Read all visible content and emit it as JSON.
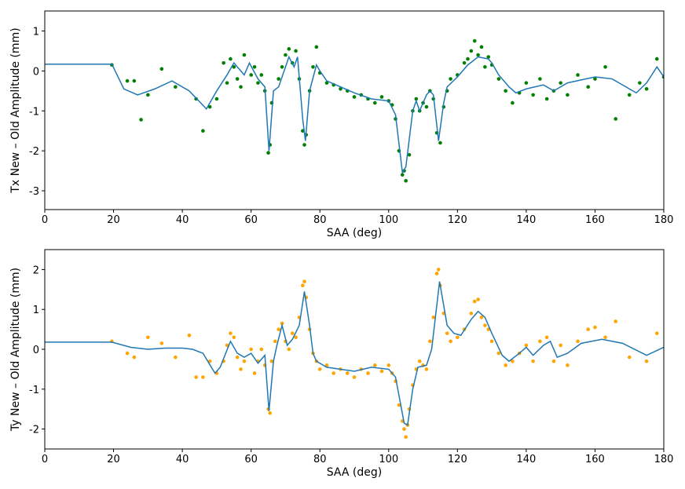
{
  "chart_data": [
    {
      "type": "scatter",
      "xlabel": "SAA (deg)",
      "ylabel": "Tx New – Old Amplitude (mm)",
      "xlim": [
        0,
        180
      ],
      "xticks": [
        0,
        20,
        40,
        60,
        80,
        100,
        120,
        140,
        160,
        180
      ],
      "ylim": [
        -3.47,
        1.5
      ],
      "yticks": [
        -3,
        -2,
        -1,
        0,
        1
      ],
      "series": [
        {
          "type": "scatter",
          "color": "#008000",
          "x": [
            19.5,
            24,
            26,
            28,
            30,
            34,
            38,
            44,
            46,
            48,
            50,
            52,
            53,
            54,
            55,
            56,
            57,
            58,
            60,
            61,
            62,
            63,
            64,
            65,
            65.5,
            66,
            68,
            69,
            70,
            71,
            72,
            73,
            74,
            75,
            75.5,
            76,
            77,
            78,
            79,
            80,
            82,
            84,
            86,
            88,
            90,
            92,
            94,
            96,
            98,
            100,
            101,
            102,
            103,
            104,
            104.5,
            105,
            106,
            107,
            108,
            109,
            110,
            111,
            112,
            113,
            114,
            115,
            116,
            117,
            118,
            120,
            122,
            123,
            124,
            125,
            126,
            127,
            128,
            129,
            130,
            132,
            134,
            136,
            138,
            140,
            142,
            144,
            146,
            148,
            150,
            152,
            155,
            158,
            160,
            163,
            166,
            170,
            173,
            175,
            178,
            180
          ],
          "values": [
            0.15,
            -0.25,
            -0.25,
            -1.22,
            -0.6,
            0.05,
            -0.4,
            -0.7,
            -1.5,
            -0.9,
            -0.7,
            0.2,
            -0.3,
            0.3,
            0.1,
            -0.2,
            -0.4,
            0.4,
            -0.1,
            0.1,
            -0.3,
            -0.1,
            -0.5,
            -2.05,
            -1.85,
            -0.8,
            -0.2,
            0.1,
            0.4,
            0.55,
            0.2,
            0.5,
            -0.2,
            -1.5,
            -1.85,
            -1.6,
            -0.5,
            0.1,
            0.6,
            -0.05,
            -0.3,
            -0.35,
            -0.45,
            -0.5,
            -0.65,
            -0.6,
            -0.7,
            -0.8,
            -0.65,
            -0.75,
            -0.85,
            -1.2,
            -2.0,
            -2.6,
            -2.5,
            -2.75,
            -2.1,
            -1.0,
            -0.7,
            -1.0,
            -0.8,
            -0.9,
            -0.5,
            -0.7,
            -1.55,
            -1.8,
            -0.9,
            -0.5,
            -0.2,
            -0.1,
            0.2,
            0.3,
            0.5,
            0.75,
            0.4,
            0.6,
            0.1,
            0.35,
            0.15,
            -0.2,
            -0.5,
            -0.8,
            -0.55,
            -0.3,
            -0.6,
            -0.2,
            -0.7,
            -0.5,
            -0.3,
            -0.6,
            -0.1,
            -0.4,
            -0.2,
            0.1,
            -1.2,
            -0.6,
            -0.3,
            -0.45,
            0.3,
            -0.15
          ]
        },
        {
          "type": "line",
          "color": "#1f77b4",
          "x": [
            0,
            19.5,
            23,
            27,
            32,
            37,
            42,
            47,
            50,
            53,
            55,
            58,
            59.5,
            62,
            64,
            65.2,
            66.5,
            68,
            71,
            72.5,
            73.5,
            75,
            75.8,
            77,
            79,
            80,
            82,
            86,
            90,
            95,
            100,
            102,
            104,
            105,
            107,
            108,
            109,
            111,
            112,
            113,
            114.5,
            116,
            117,
            120,
            123,
            126,
            129,
            130,
            132,
            135,
            137,
            140,
            145,
            148,
            152,
            160,
            165,
            170,
            172,
            175,
            178,
            180
          ],
          "values": [
            0.17,
            0.17,
            -0.45,
            -0.6,
            -0.45,
            -0.25,
            -0.5,
            -0.95,
            -0.5,
            -0.1,
            0.2,
            -0.1,
            0.2,
            -0.2,
            -0.4,
            -2.0,
            -0.5,
            -0.4,
            0.35,
            0.1,
            0.35,
            -1.2,
            -1.75,
            -0.5,
            0.15,
            0,
            -0.25,
            -0.4,
            -0.55,
            -0.7,
            -0.75,
            -1.1,
            -2.55,
            -2.4,
            -1.0,
            -0.75,
            -1.0,
            -0.6,
            -0.5,
            -0.6,
            -1.75,
            -0.8,
            -0.4,
            -0.15,
            0.15,
            0.35,
            0.3,
            0.2,
            -0.1,
            -0.4,
            -0.55,
            -0.45,
            -0.35,
            -0.5,
            -0.3,
            -0.15,
            -0.2,
            -0.45,
            -0.55,
            -0.3,
            0.1,
            -0.15
          ]
        }
      ]
    },
    {
      "type": "scatter",
      "xlabel": "SAA (deg)",
      "ylabel": "Ty New – Old Amplitude (mm)",
      "xlim": [
        0,
        180
      ],
      "xticks": [
        0,
        20,
        40,
        60,
        80,
        100,
        120,
        140,
        160,
        180
      ],
      "ylim": [
        -2.5,
        2.5
      ],
      "yticks": [
        -2,
        -1,
        0,
        1,
        2
      ],
      "series": [
        {
          "type": "scatter",
          "color": "#ffa500",
          "x": [
            19.5,
            24,
            26,
            30,
            34,
            38,
            42,
            44,
            46,
            48,
            50,
            52,
            53,
            54,
            55,
            56,
            57,
            58,
            60,
            61,
            62,
            63,
            64,
            65,
            65.5,
            66,
            67,
            68,
            69,
            70,
            71,
            72,
            73,
            74,
            75,
            75.5,
            76,
            77,
            78,
            79,
            80,
            82,
            84,
            86,
            88,
            90,
            92,
            94,
            96,
            98,
            100,
            101,
            102,
            103,
            104,
            104.5,
            105,
            105.5,
            106,
            107,
            108,
            109,
            110,
            111,
            112,
            113,
            114,
            114.5,
            115,
            116,
            117,
            118,
            120,
            122,
            124,
            125,
            126,
            127,
            128,
            129,
            130,
            132,
            134,
            136,
            138,
            140,
            142,
            144,
            146,
            148,
            150,
            152,
            155,
            158,
            160,
            163,
            166,
            170,
            175,
            178
          ],
          "values": [
            0.2,
            -0.1,
            -0.2,
            0.3,
            0.15,
            -0.2,
            0.35,
            -0.7,
            -0.7,
            -0.3,
            -0.6,
            -0.3,
            0.1,
            0.4,
            0.3,
            -0.2,
            -0.5,
            -0.3,
            0.0,
            -0.6,
            -0.3,
            0.0,
            -0.4,
            -1.5,
            -1.6,
            -0.3,
            0.2,
            0.5,
            0.65,
            0.2,
            0.0,
            0.4,
            0.3,
            0.8,
            1.6,
            1.7,
            1.3,
            0.5,
            -0.1,
            -0.3,
            -0.5,
            -0.4,
            -0.6,
            -0.5,
            -0.6,
            -0.7,
            -0.5,
            -0.6,
            -0.4,
            -0.55,
            -0.4,
            -0.6,
            -0.8,
            -1.4,
            -1.8,
            -2.0,
            -2.2,
            -1.9,
            -1.5,
            -0.9,
            -0.5,
            -0.3,
            -0.4,
            -0.5,
            0.2,
            0.8,
            1.9,
            2.0,
            1.6,
            0.9,
            0.4,
            0.2,
            0.3,
            0.5,
            0.9,
            1.2,
            1.25,
            0.8,
            0.6,
            0.5,
            0.2,
            -0.1,
            -0.4,
            -0.3,
            -0.1,
            0.1,
            -0.3,
            0.2,
            0.3,
            -0.3,
            0.1,
            -0.4,
            0.2,
            0.5,
            0.55,
            0.3,
            0.7,
            -0.2,
            -0.3,
            0.4
          ]
        },
        {
          "type": "line",
          "color": "#1f77b4",
          "x": [
            0,
            19.5,
            25,
            30,
            35,
            40,
            43,
            46,
            49.5,
            51,
            54,
            56,
            58,
            60,
            62,
            64,
            65.2,
            66.5,
            67.5,
            69,
            70.5,
            72,
            74,
            75.5,
            77,
            78,
            79,
            82,
            90,
            95,
            100,
            102,
            104.5,
            105.5,
            107,
            108.5,
            111,
            112.5,
            114.8,
            117,
            119,
            121,
            124,
            126,
            128,
            130,
            133,
            135,
            138,
            140,
            142,
            145,
            147,
            149,
            152,
            156,
            162,
            168,
            175,
            180
          ],
          "values": [
            0.18,
            0.18,
            0.05,
            0.0,
            0.03,
            0.03,
            0.0,
            -0.1,
            -0.6,
            -0.45,
            0.2,
            -0.1,
            -0.2,
            -0.1,
            -0.35,
            -0.15,
            -1.55,
            -0.3,
            0.1,
            0.6,
            0.1,
            0.25,
            0.6,
            1.45,
            0.6,
            -0.1,
            -0.3,
            -0.45,
            -0.55,
            -0.45,
            -0.5,
            -0.7,
            -1.85,
            -1.9,
            -1.0,
            -0.45,
            -0.4,
            0.0,
            1.7,
            0.6,
            0.4,
            0.35,
            0.75,
            0.95,
            0.8,
            0.4,
            -0.15,
            -0.3,
            -0.1,
            0.05,
            -0.15,
            0.1,
            0.2,
            -0.2,
            -0.1,
            0.15,
            0.25,
            0.15,
            -0.15,
            0.05
          ]
        }
      ]
    }
  ]
}
